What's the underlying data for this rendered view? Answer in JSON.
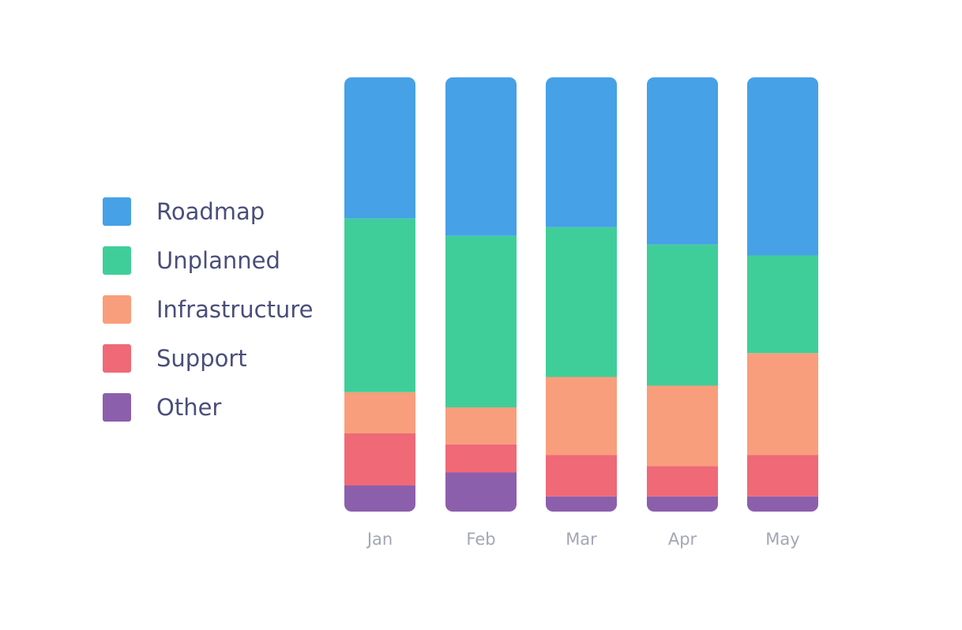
{
  "chart_data": {
    "type": "bar",
    "stacked": true,
    "normalized": true,
    "categories": [
      "Jan",
      "Feb",
      "Mar",
      "Apr",
      "May"
    ],
    "series": [
      {
        "name": "Other",
        "color": "#8c5fad",
        "values": [
          6,
          9,
          3.5,
          3.5,
          3.5
        ]
      },
      {
        "name": "Support",
        "color": "#ef6977",
        "values": [
          12,
          6.5,
          9.5,
          7,
          9.5
        ]
      },
      {
        "name": "Infrastructure",
        "color": "#f99e7c",
        "values": [
          9.5,
          8.5,
          18,
          18.5,
          23.5
        ]
      },
      {
        "name": "Unplanned",
        "color": "#3fce99",
        "values": [
          40,
          39.5,
          34.5,
          32.5,
          22.5
        ]
      },
      {
        "name": "Roadmap",
        "color": "#46a1e6",
        "values": [
          32.5,
          36.5,
          34.5,
          38.5,
          41
        ]
      }
    ],
    "legend": {
      "position": "left",
      "order": [
        "Roadmap",
        "Unplanned",
        "Infrastructure",
        "Support",
        "Other"
      ]
    },
    "ylim": [
      0,
      100
    ],
    "grid": false
  }
}
